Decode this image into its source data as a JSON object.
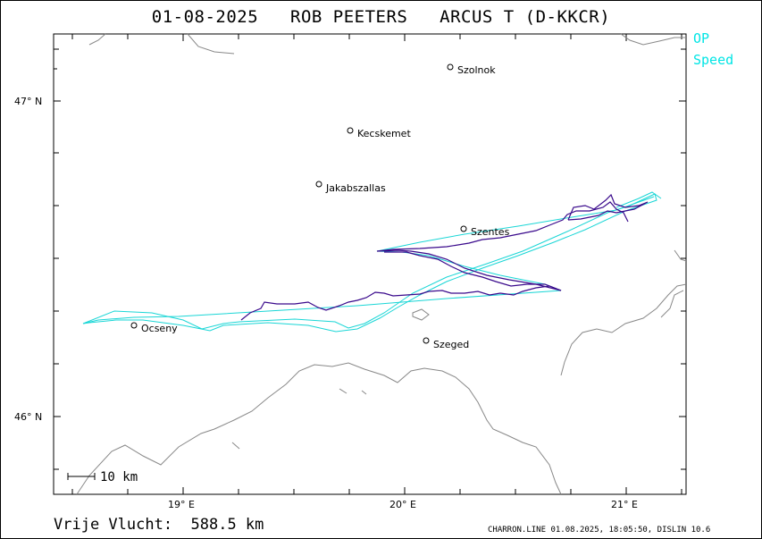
{
  "header": {
    "title": "01-08-2025   ROB PEETERS   ARCUS T (D-KKCR)"
  },
  "legend": {
    "op": "OP",
    "speed": "Speed",
    "op_color": "#00e5e5",
    "speed_color": "#00e5e5"
  },
  "colors": {
    "track_primary": "#3a0a8c",
    "track_secondary": "#1ad6d6",
    "border": "#888888",
    "frame": "#000000"
  },
  "map": {
    "latitude_labels": [
      "47° N",
      "46° N"
    ],
    "longitude_labels": [
      "19° E",
      "20° E",
      "21° E"
    ],
    "scale_bar_label": "10 km",
    "cities": [
      {
        "name": "Szolnok"
      },
      {
        "name": "Kecskemet"
      },
      {
        "name": "Jakabszallas"
      },
      {
        "name": "Szentes"
      },
      {
        "name": "Ocseny"
      },
      {
        "name": "Szeged"
      }
    ]
  },
  "footer": {
    "distance_label": "Vrije Vlucht:  588.5 km",
    "software_stamp": "CHARRON.LINE 01.08.2025, 18:05:50, DISLIN 10.6"
  }
}
